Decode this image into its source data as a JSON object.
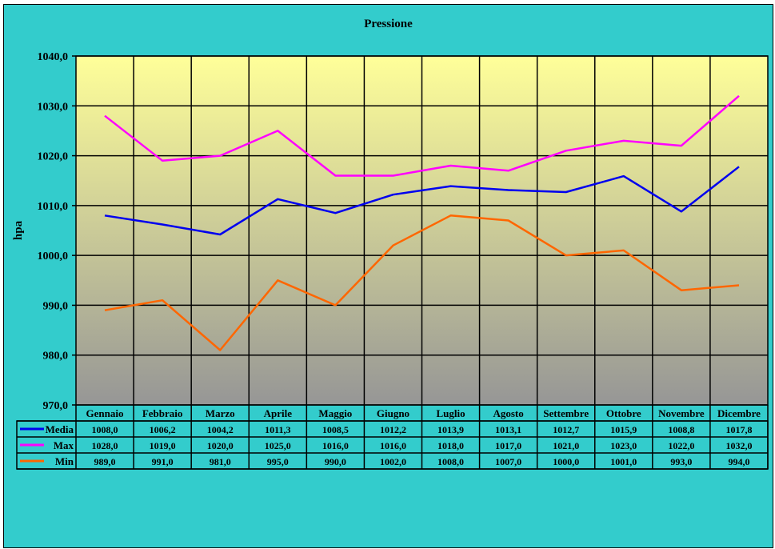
{
  "chart_data": {
    "type": "line",
    "title": "Pressione",
    "xlabel": "",
    "ylabel": "hpa",
    "ylim": [
      970,
      1040
    ],
    "yticks": [
      "970,0",
      "980,0",
      "990,0",
      "1000,0",
      "1010,0",
      "1020,0",
      "1030,0",
      "1040,0"
    ],
    "grid": true,
    "legend": "data-table",
    "categories": [
      "Gennaio",
      "Febbraio",
      "Marzo",
      "Aprile",
      "Maggio",
      "Giugno",
      "Luglio",
      "Agosto",
      "Settembre",
      "Ottobre",
      "Novembre",
      "Dicembre"
    ],
    "series": [
      {
        "name": "Media",
        "color": "#0000ee",
        "values": [
          1008.0,
          1006.2,
          1004.2,
          1011.3,
          1008.5,
          1012.2,
          1013.9,
          1013.1,
          1012.7,
          1015.9,
          1008.8,
          1017.8
        ],
        "labels": [
          "1008,0",
          "1006,2",
          "1004,2",
          "1011,3",
          "1008,5",
          "1012,2",
          "1013,9",
          "1013,1",
          "1012,7",
          "1015,9",
          "1008,8",
          "1017,8"
        ]
      },
      {
        "name": "Max",
        "color": "#ff00ff",
        "values": [
          1028.0,
          1019.0,
          1020.0,
          1025.0,
          1016.0,
          1016.0,
          1018.0,
          1017.0,
          1021.0,
          1023.0,
          1022.0,
          1032.0
        ],
        "labels": [
          "1028,0",
          "1019,0",
          "1020,0",
          "1025,0",
          "1016,0",
          "1016,0",
          "1018,0",
          "1017,0",
          "1021,0",
          "1023,0",
          "1022,0",
          "1032,0"
        ]
      },
      {
        "name": "Min",
        "color": "#ff6600",
        "values": [
          989.0,
          991.0,
          981.0,
          995.0,
          990.0,
          1002.0,
          1008.0,
          1007.0,
          1000.0,
          1001.0,
          993.0,
          994.0
        ],
        "labels": [
          "989,0",
          "991,0",
          "981,0",
          "995,0",
          "990,0",
          "1002,0",
          "1008,0",
          "1007,0",
          "1000,0",
          "1001,0",
          "993,0",
          "994,0"
        ]
      }
    ]
  },
  "colors": {
    "background": "#33cccc",
    "plot_gradient_top": "#ffff99",
    "plot_gradient_bottom": "#969696"
  }
}
